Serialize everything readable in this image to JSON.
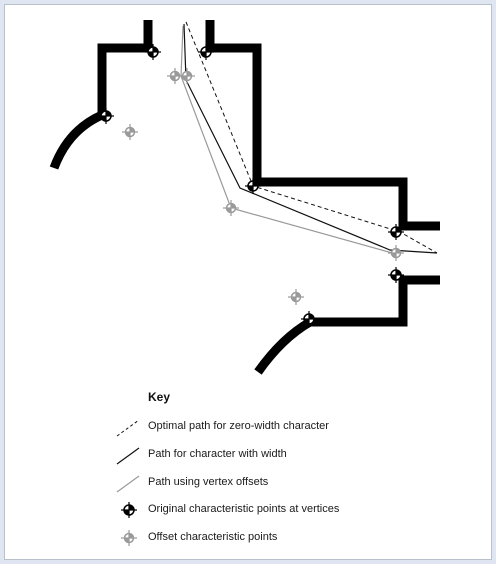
{
  "key": {
    "title": "Key",
    "items": [
      {
        "label": "Optimal path for zero-width character",
        "kind": "dashed-line",
        "color": "#111111"
      },
      {
        "label": "Path for character with width",
        "kind": "solid-line",
        "color": "#111111"
      },
      {
        "label": "Path using vertex offsets",
        "kind": "solid-line",
        "color": "#999999"
      },
      {
        "label": "Original characteristic points at vertices",
        "kind": "original-point-marker",
        "color": "#000000"
      },
      {
        "label": "Offset characteristic points",
        "kind": "offset-point-marker",
        "color": "#9a9a9a"
      }
    ]
  },
  "colors": {
    "wall": "#000000",
    "optimal_path": "#111111",
    "width_path": "#111111",
    "offset_path": "#999999",
    "background": "#dfe6f1",
    "panel": "#ffffff"
  }
}
